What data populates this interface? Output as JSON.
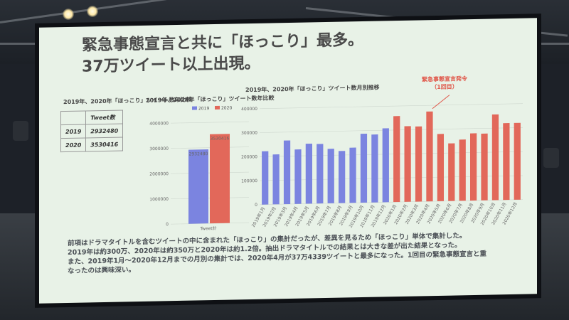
{
  "slide": {
    "title_line1": "緊急事態宣言と共に「ほっこり」最多。",
    "title_line2": "37万ツイート以上出現。",
    "table_title": "2019年、2020年「ほっこり」ツイート数年比較",
    "table": {
      "header": "Tweet数",
      "rows": [
        {
          "year": "2019",
          "value": "2932480"
        },
        {
          "year": "2020",
          "value": "3530416"
        }
      ]
    },
    "bar_chart_title": "2019年、2020年「ほっこり」ツイート数年比較",
    "monthly_title": "2019年、2020年「ほっこり」ツイート数月別推移",
    "annotation": {
      "line1": "緊急事態宣言発令",
      "line2": "（1回目）"
    },
    "paragraph": {
      "line1": "前項はドラマタイトルを含むツイートの中に含まれた「ほっこり」の集計だったが、差異を見るため「ほっこり」単体で集計した。",
      "line2": "2019年は約300万、2020年は約350万と2020年は約1.2倍。抽出ドラマタイトルでの結果とは大きな差が出た結果となった。",
      "line3": "また、2019年1月～2020年12月までの月別の集計では、2020年4月が37万4339ツイートと最多になった。1回目の緊急事態宣言と重",
      "line4": "なったのは興味深い。"
    }
  },
  "chart_data": [
    {
      "type": "bar",
      "categories": [
        "Tweet計"
      ],
      "series": [
        {
          "name": "2019",
          "values": [
            2932480
          ],
          "color": "#7b84e0"
        },
        {
          "name": "2020",
          "values": [
            3530416
          ],
          "color": "#e2685a"
        }
      ],
      "data_labels": [
        "2932480",
        "3530416"
      ],
      "yticks": [
        "4000000",
        "3000000",
        "2000000",
        "1000000",
        "0"
      ],
      "ylim": [
        0,
        4000000
      ],
      "legend": "top"
    },
    {
      "type": "bar",
      "categories": [
        "2019年1月",
        "2019年2月",
        "2019年3月",
        "2019年4月",
        "2019年5月",
        "2019年6月",
        "2019年7月",
        "2019年8月",
        "2019年9月",
        "2019年10月",
        "2019年11月",
        "2019年12月",
        "2020年1月",
        "2020年2月",
        "2020年3月",
        "2020年4月",
        "2020年5月",
        "2020年6月",
        "2020年7月",
        "2020年8月",
        "2020年9月",
        "2020年10月",
        "2020年11月",
        "2020年12月"
      ],
      "values": [
        222000,
        208000,
        265000,
        227000,
        250000,
        248000,
        227000,
        217000,
        230000,
        287000,
        283000,
        308000,
        358000,
        315000,
        313000,
        374339,
        280000,
        240000,
        255000,
        280000,
        278000,
        357000,
        320000,
        320000
      ],
      "colors": [
        "#7b84e0",
        "#7b84e0",
        "#7b84e0",
        "#7b84e0",
        "#7b84e0",
        "#7b84e0",
        "#7b84e0",
        "#7b84e0",
        "#7b84e0",
        "#7b84e0",
        "#7b84e0",
        "#7b84e0",
        "#e2685a",
        "#e2685a",
        "#e2685a",
        "#e2685a",
        "#e2685a",
        "#e2685a",
        "#e2685a",
        "#e2685a",
        "#e2685a",
        "#e2685a",
        "#e2685a",
        "#e2685a"
      ],
      "yticks": [
        "400000",
        "300000",
        "200000",
        "100000",
        "0"
      ],
      "ylim": [
        0,
        400000
      ]
    }
  ]
}
